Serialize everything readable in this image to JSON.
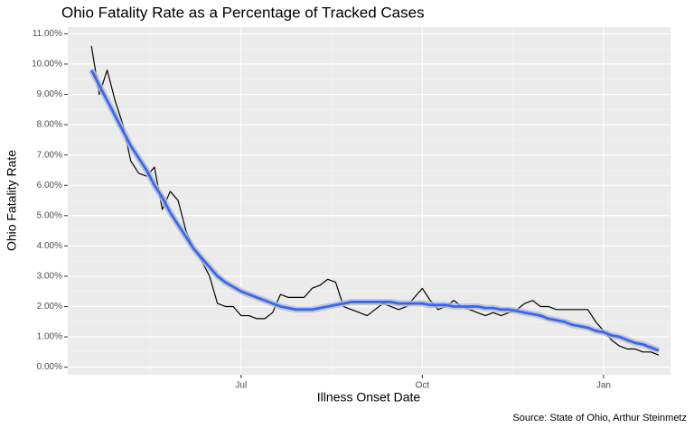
{
  "chart_data": {
    "type": "line",
    "title": "Ohio Fatality Rate as a Percentage of Tracked Cases",
    "xlabel": "Illness Onset Date",
    "ylabel": "Ohio Fatality Rate",
    "caption": "Source: State of Ohio, Arthur Steinmetz",
    "categories": [
      null,
      null,
      null,
      null,
      null,
      null,
      null,
      null,
      null,
      null,
      null,
      null,
      null,
      null,
      null,
      null,
      null,
      null,
      null,
      "Jul",
      null,
      null,
      null,
      null,
      null,
      null,
      null,
      null,
      null,
      null,
      null,
      null,
      null,
      null,
      null,
      null,
      null,
      null,
      null,
      null,
      null,
      null,
      "Oct",
      null,
      null,
      null,
      null,
      null,
      null,
      null,
      null,
      null,
      null,
      null,
      null,
      null,
      null,
      null,
      null,
      null,
      null,
      null,
      null,
      null,
      null,
      "Jan",
      null,
      null,
      null,
      null,
      null,
      null,
      null
    ],
    "series": [
      {
        "color": "#000000",
        "values": [
          10.6,
          9.0,
          9.8,
          8.8,
          8.0,
          6.8,
          6.4,
          6.3,
          6.6,
          5.2,
          5.8,
          5.5,
          4.5,
          3.9,
          3.5,
          3.0,
          2.1,
          2.0,
          2.0,
          1.7,
          1.7,
          1.6,
          1.6,
          1.8,
          2.4,
          2.3,
          2.3,
          2.3,
          2.6,
          2.7,
          2.9,
          2.8,
          2.0,
          1.9,
          1.8,
          1.7,
          1.9,
          2.1,
          2.0,
          1.9,
          2.0,
          2.3,
          2.6,
          2.2,
          1.9,
          2.0,
          2.2,
          2.0,
          1.9,
          1.8,
          1.7,
          1.8,
          1.7,
          1.8,
          1.9,
          2.1,
          2.2,
          2.0,
          2.0,
          1.9,
          1.9,
          1.9,
          1.9,
          1.9,
          1.5,
          1.2,
          0.9,
          0.7,
          0.6,
          0.6,
          0.5,
          0.5,
          0.4
        ]
      },
      {
        "color": "#3366ff",
        "values": [
          9.8,
          9.3,
          8.8,
          8.3,
          7.8,
          7.3,
          6.9,
          6.5,
          6.0,
          5.6,
          5.1,
          4.7,
          4.3,
          3.9,
          3.6,
          3.3,
          3.0,
          2.8,
          2.65,
          2.5,
          2.4,
          2.3,
          2.2,
          2.1,
          2.0,
          1.95,
          1.9,
          1.9,
          1.9,
          1.95,
          2.0,
          2.05,
          2.1,
          2.15,
          2.15,
          2.15,
          2.15,
          2.15,
          2.15,
          2.1,
          2.1,
          2.1,
          2.1,
          2.05,
          2.05,
          2.05,
          2.0,
          2.0,
          2.0,
          2.0,
          1.95,
          1.95,
          1.9,
          1.9,
          1.85,
          1.8,
          1.75,
          1.7,
          1.6,
          1.55,
          1.5,
          1.4,
          1.35,
          1.3,
          1.2,
          1.15,
          1.05,
          1.0,
          0.9,
          0.8,
          0.75,
          0.65,
          0.55
        ]
      }
    ],
    "ylim": [
      -0.25,
      11.22
    ],
    "yticks": [
      {
        "value": 0,
        "label": "0.00%"
      },
      {
        "value": 1,
        "label": "1.00%"
      },
      {
        "value": 2,
        "label": "2.00%"
      },
      {
        "value": 3,
        "label": "3.00%"
      },
      {
        "value": 4,
        "label": "4.00%"
      },
      {
        "value": 5,
        "label": "5.00%"
      },
      {
        "value": 6,
        "label": "6.00%"
      },
      {
        "value": 7,
        "label": "7.00%"
      },
      {
        "value": 8,
        "label": "8.00%"
      },
      {
        "value": 9,
        "label": "9.00%"
      },
      {
        "value": 10,
        "label": "10.00%"
      },
      {
        "value": 11,
        "label": "11.00%"
      }
    ],
    "grid": true
  }
}
